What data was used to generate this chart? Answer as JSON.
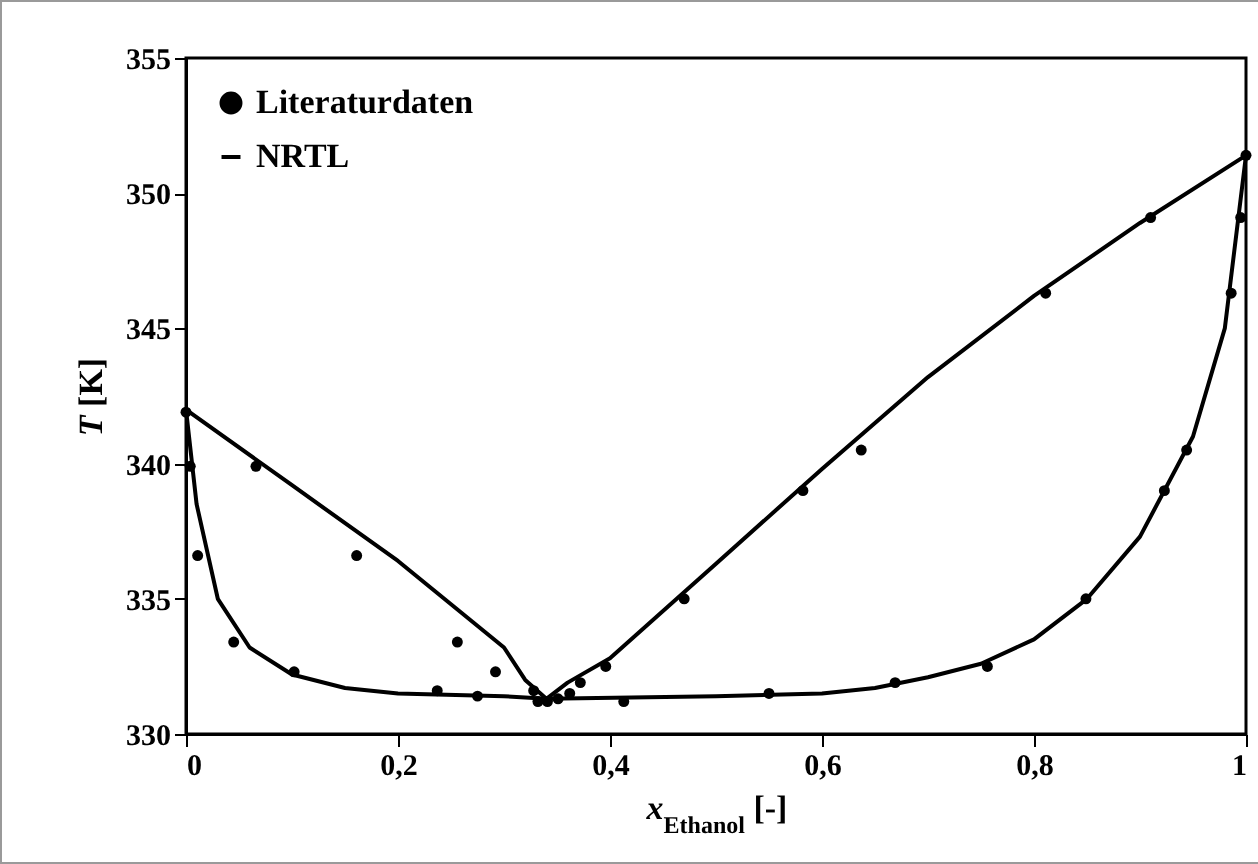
{
  "chart_data": {
    "type": "scatter",
    "xlabel": "x$_{Ethanol}$ [-]",
    "ylabel": "T [K]",
    "xlim": [
      0,
      1
    ],
    "ylim": [
      330,
      355
    ],
    "xticks": [
      0,
      {
        "value": 0.2,
        "label": "0,2"
      },
      {
        "value": 0.4,
        "label": "0,4"
      },
      {
        "value": 0.6,
        "label": "0,6"
      },
      {
        "value": 0.8,
        "label": "0,8"
      },
      1
    ],
    "yticks": [
      330,
      335,
      340,
      345,
      350,
      355
    ],
    "grid": false,
    "legend": "top left",
    "series": [
      {
        "name": "Literaturdaten",
        "color": "#000000",
        "marker": "circle",
        "x": [
          0,
          0.004,
          0.011,
          0.045,
          0.066,
          0.102,
          0.161,
          0.237,
          0.256,
          0.275,
          0.292,
          0.328,
          0.332,
          0.341,
          0.351,
          0.362,
          0.372,
          0.396,
          0.413,
          0.47,
          0.55,
          0.582,
          0.637,
          0.669,
          0.756,
          0.811,
          0.849,
          0.91,
          0.923,
          0.944,
          0.986,
          0.995,
          1
        ],
        "values": [
          341.9,
          339.9,
          336.6,
          333.4,
          339.9,
          332.3,
          336.6,
          331.6,
          333.4,
          331.4,
          332.3,
          331.6,
          331.2,
          331.2,
          331.3,
          331.5,
          331.9,
          332.5,
          331.2,
          335,
          331.5,
          339,
          340.5,
          331.9,
          332.5,
          346.3,
          335,
          349.1,
          339,
          340.5,
          346.3,
          349.1,
          351.4
        ]
      },
      {
        "name": "NRTL",
        "type": "line",
        "color": "#000000",
        "line_style": "solid",
        "x": [
          0,
          0.1,
          0.2,
          0.3,
          0.32,
          0.34,
          0.36,
          0.4,
          0.5,
          0.6,
          0.7,
          0.8,
          0.9,
          1
        ],
        "values": [
          342,
          339.2,
          336.4,
          333.2,
          332.0,
          331.3,
          331.9,
          332.8,
          336.3,
          339.8,
          343.2,
          346.2,
          348.9,
          351.4
        ]
      },
      {
        "type": "line",
        "color": "#000000",
        "line_style": "solid",
        "x": [
          0,
          0.01,
          0.03,
          0.06,
          0.1,
          0.15,
          0.2,
          0.3,
          0.34,
          0.5,
          0.6,
          0.65,
          0.7,
          0.75,
          0.8,
          0.85,
          0.9,
          0.95,
          0.98,
          1
        ],
        "values": [
          342,
          338.5,
          335,
          333.2,
          332.2,
          331.7,
          331.5,
          331.4,
          331.3,
          331.4,
          331.5,
          331.7,
          332.1,
          332.6,
          333.5,
          335,
          337.3,
          341,
          345,
          351.4
        ]
      }
    ]
  }
}
